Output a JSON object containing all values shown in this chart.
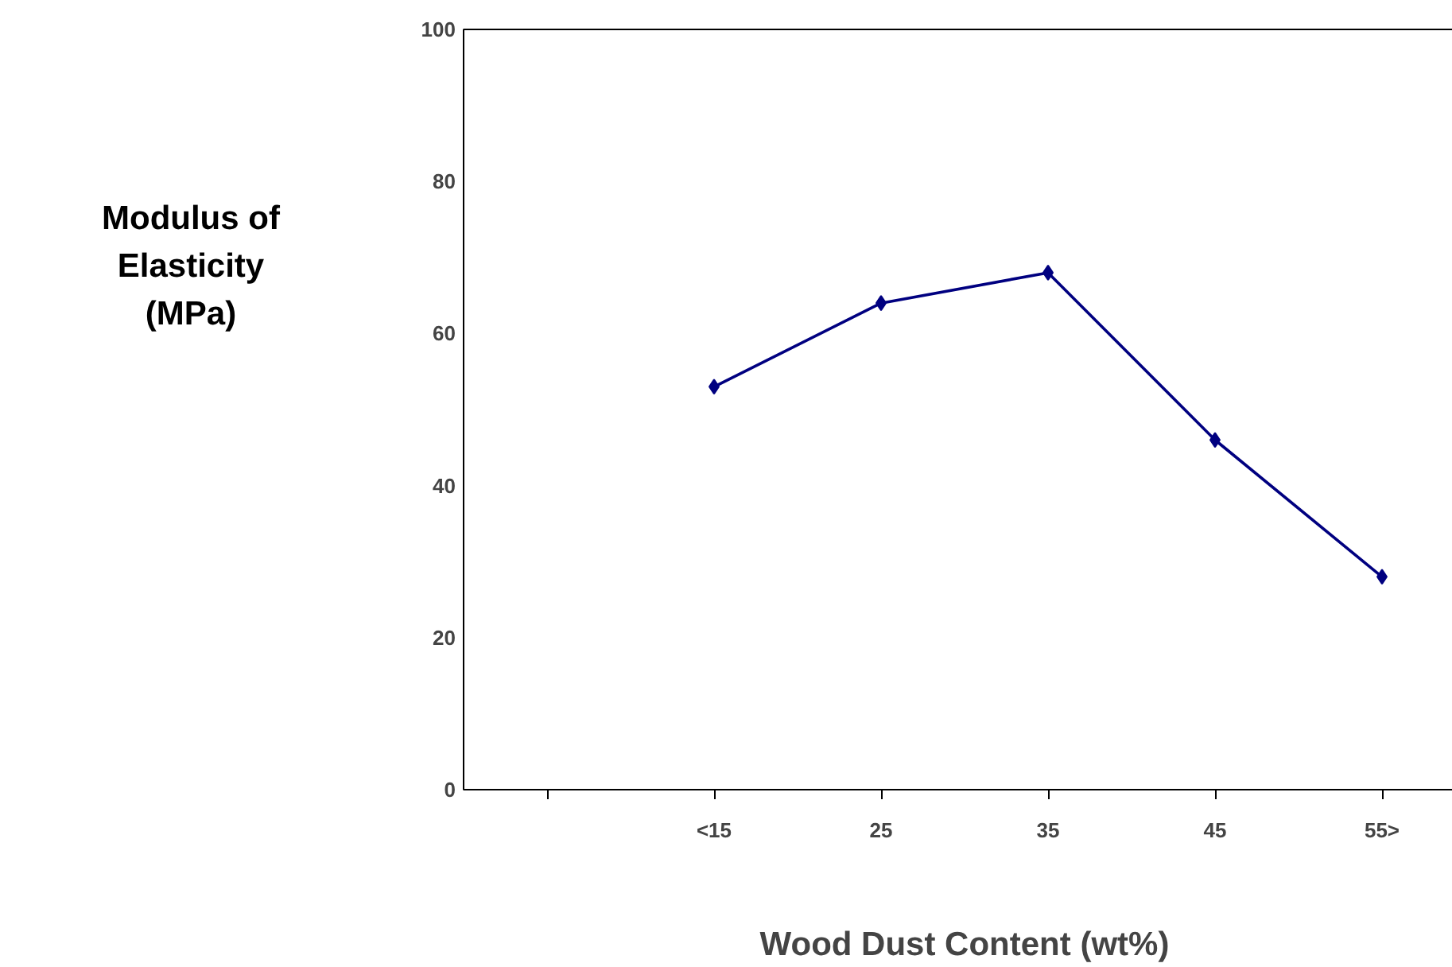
{
  "chart_data": {
    "type": "line",
    "xlabel": "Wood Dust Content (wt%)",
    "ylabel": "Modulus of\nElasticity\n(MPa)",
    "categories": [
      null,
      "<15",
      "25",
      "35",
      "45",
      "55>"
    ],
    "series": [
      {
        "color": "#000080",
        "values": [
          null,
          53,
          64,
          68,
          46,
          28
        ]
      }
    ],
    "ylim": [
      0,
      100
    ],
    "yticks": [
      0,
      20,
      40,
      60,
      80,
      100
    ],
    "grid": false,
    "marker": "diamond",
    "line_style": "solid"
  }
}
